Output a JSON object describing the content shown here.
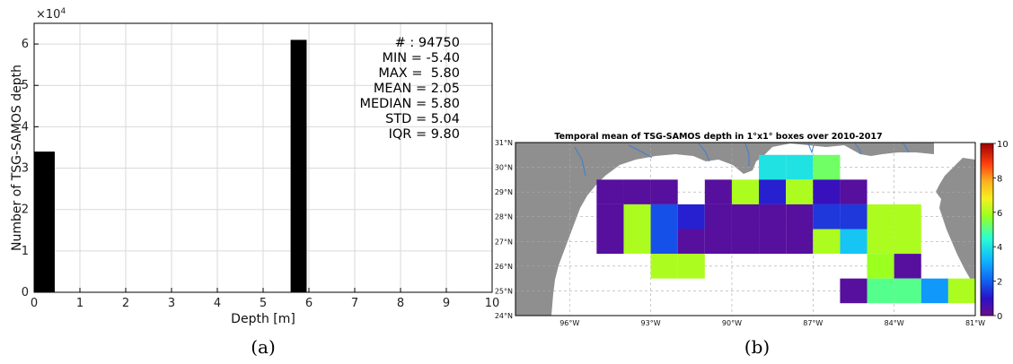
{
  "chart_data": [
    {
      "type": "bar",
      "panel_label": "(a)",
      "xlabel": "Depth [m]",
      "ylabel": "Number of TSG-SAMOS depth",
      "y_multiplier": "×10",
      "y_multiplier_exp": "4",
      "xlim": [
        0,
        10
      ],
      "ylim": [
        0,
        65000
      ],
      "xticks": [
        "0",
        "1",
        "2",
        "3",
        "4",
        "5",
        "6",
        "7",
        "8",
        "9",
        "10"
      ],
      "yticks": [
        "0",
        "1",
        "2",
        "3",
        "4",
        "5",
        "6"
      ],
      "grid": true,
      "bars": [
        {
          "x0": 0.0,
          "x1": 0.45,
          "value": 34000
        },
        {
          "x0": 5.6,
          "x1": 5.95,
          "value": 61000
        }
      ],
      "stats": [
        "# : 94750",
        "MIN = -5.40",
        "MAX =  5.80",
        "MEAN = 2.05",
        "MEDIAN = 5.80",
        "STD = 5.04",
        "IQR = 9.80"
      ],
      "bar_color": "#000000"
    },
    {
      "type": "heatmap",
      "panel_label": "(b)",
      "title": "Temporal mean of TSG-SAMOS depth in 1°x1° boxes over 2010-2017",
      "xlim": [
        -98,
        -81
      ],
      "ylim": [
        24,
        31
      ],
      "xticks": [
        "96°W",
        "93°W",
        "90°W",
        "87°W",
        "84°W",
        "81°W"
      ],
      "xtick_values": [
        -96,
        -93,
        -90,
        -87,
        -84,
        -81
      ],
      "yticks": [
        "24°N",
        "25°N",
        "26°N",
        "27°N",
        "28°N",
        "29°N",
        "30°N",
        "31°N"
      ],
      "ytick_values": [
        24,
        25,
        26,
        27,
        28,
        29,
        30,
        31
      ],
      "colorbar": {
        "min": 0,
        "max": 10,
        "ticks": [
          "0",
          "2",
          "4",
          "6",
          "8",
          "10"
        ]
      },
      "cells": [
        {
          "lon": -88.5,
          "lat": 30,
          "value": 4
        },
        {
          "lon": -87.5,
          "lat": 30,
          "value": 4
        },
        {
          "lon": -86.5,
          "lat": 30,
          "value": 5.3
        },
        {
          "lon": -94.5,
          "lat": 29,
          "value": 0.3
        },
        {
          "lon": -93.5,
          "lat": 29,
          "value": 0.3
        },
        {
          "lon": -92.5,
          "lat": 29,
          "value": 0.3
        },
        {
          "lon": -90.5,
          "lat": 29,
          "value": 0.3
        },
        {
          "lon": -89.5,
          "lat": 29,
          "value": 6
        },
        {
          "lon": -88.5,
          "lat": 29,
          "value": 1.2
        },
        {
          "lon": -87.5,
          "lat": 29,
          "value": 6
        },
        {
          "lon": -86.5,
          "lat": 29,
          "value": 0.8
        },
        {
          "lon": -85.5,
          "lat": 29,
          "value": 0.3
        },
        {
          "lon": -94.5,
          "lat": 28,
          "value": 0.3
        },
        {
          "lon": -93.5,
          "lat": 28,
          "value": 6
        },
        {
          "lon": -92.5,
          "lat": 28,
          "value": 1.8
        },
        {
          "lon": -91.5,
          "lat": 28,
          "value": 1.2
        },
        {
          "lon": -90.5,
          "lat": 28,
          "value": 0.3
        },
        {
          "lon": -89.5,
          "lat": 28,
          "value": 0.3
        },
        {
          "lon": -88.5,
          "lat": 28,
          "value": 0.3
        },
        {
          "lon": -87.5,
          "lat": 28,
          "value": 0.3
        },
        {
          "lon": -86.5,
          "lat": 28,
          "value": 1.5
        },
        {
          "lon": -85.5,
          "lat": 28,
          "value": 1.5
        },
        {
          "lon": -84.5,
          "lat": 28,
          "value": 6
        },
        {
          "lon": -83.5,
          "lat": 28,
          "value": 6
        },
        {
          "lon": -94.5,
          "lat": 27,
          "value": 0.3
        },
        {
          "lon": -93.5,
          "lat": 27,
          "value": 6
        },
        {
          "lon": -92.5,
          "lat": 27,
          "value": 1.8
        },
        {
          "lon": -91.5,
          "lat": 27,
          "value": 0.3
        },
        {
          "lon": -90.5,
          "lat": 27,
          "value": 0.3
        },
        {
          "lon": -89.5,
          "lat": 27,
          "value": 0.3
        },
        {
          "lon": -88.5,
          "lat": 27,
          "value": 0.3
        },
        {
          "lon": -87.5,
          "lat": 27,
          "value": 0.3
        },
        {
          "lon": -86.5,
          "lat": 27,
          "value": 6
        },
        {
          "lon": -85.5,
          "lat": 27,
          "value": 3.5
        },
        {
          "lon": -84.5,
          "lat": 27,
          "value": 6
        },
        {
          "lon": -83.5,
          "lat": 27,
          "value": 6
        },
        {
          "lon": -92.5,
          "lat": 26,
          "value": 6
        },
        {
          "lon": -91.5,
          "lat": 26,
          "value": 6
        },
        {
          "lon": -84.5,
          "lat": 26,
          "value": 5.8
        },
        {
          "lon": -83.5,
          "lat": 26,
          "value": 0.3
        },
        {
          "lon": -85.5,
          "lat": 25,
          "value": 0.3
        },
        {
          "lon": -84.5,
          "lat": 25,
          "value": 5
        },
        {
          "lon": -83.5,
          "lat": 25,
          "value": 5
        },
        {
          "lon": -82.5,
          "lat": 25,
          "value": 2.8
        },
        {
          "lon": -81.5,
          "lat": 25,
          "value": 6
        }
      ]
    }
  ]
}
